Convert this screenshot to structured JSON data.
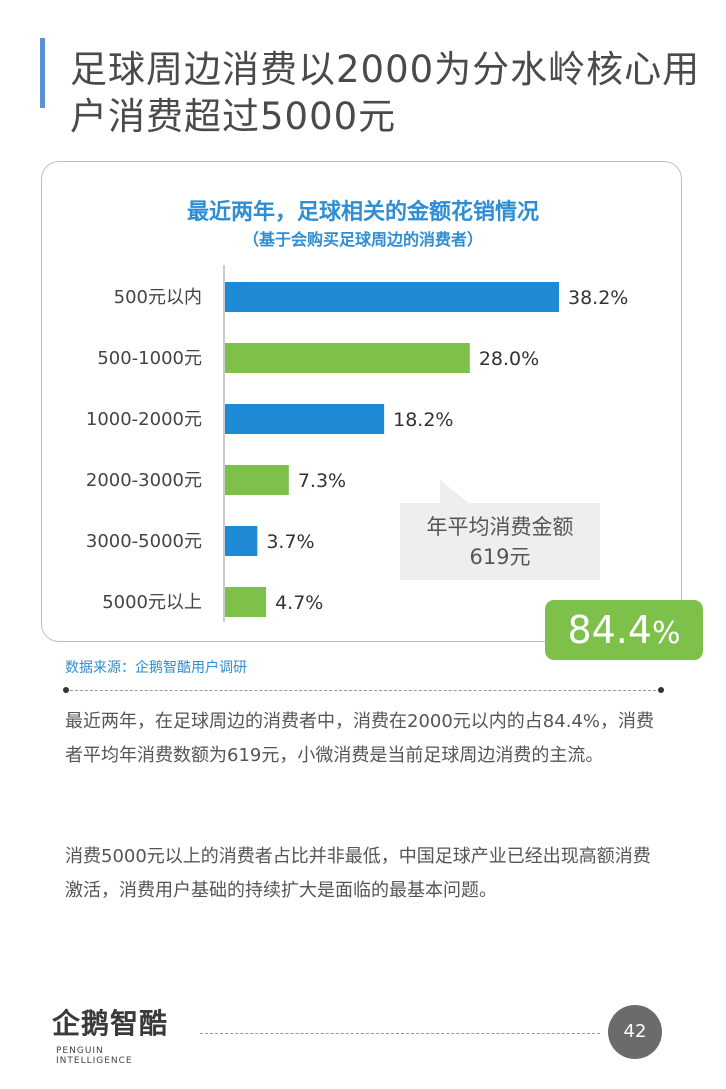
{
  "page": {
    "title": "足球周边消费以2000为分水岭核心用户消费超过5000元",
    "source": "数据来源：企鹅智酷用户调研",
    "paragraph1": "最近两年，在足球周边的消费者中，消费在2000元以内的占84.4%，消费者平均年消费数额为619元，小微消费是当前足球周边消费的主流。",
    "paragraph2": "消费5000元以上的消费者占比并非最低，中国足球产业已经出现高额消费激活，消费用户基础的持续扩大是面临的最基本问题。",
    "logo_text": "企鹅智酷",
    "logo_sub": "PENGUIN INTELLIGENCE",
    "page_number": "42"
  },
  "callout": {
    "line1": "年平均消费金额",
    "line2": "619元"
  },
  "highlight": {
    "value": "84.4",
    "unit": "%"
  },
  "colors": {
    "blue": "#1e8ad6",
    "green": "#7dc14a",
    "accent_title": "#2f8ed3"
  },
  "chart_data": {
    "type": "bar",
    "orientation": "horizontal",
    "title": "最近两年，足球相关的金额花销情况",
    "subtitle": "（基于会购买足球周边的消费者）",
    "categories": [
      "500元以内",
      "500-1000元",
      "1000-2000元",
      "2000-3000元",
      "3000-5000元",
      "5000元以上"
    ],
    "values": [
      38.2,
      28.0,
      18.2,
      7.3,
      3.7,
      4.7
    ],
    "value_labels": [
      "38.2%",
      "28.0%",
      "18.2%",
      "7.3%",
      "3.7%",
      "4.7%"
    ],
    "bar_colors": [
      "#1e8ad6",
      "#7dc14a",
      "#1e8ad6",
      "#7dc14a",
      "#1e8ad6",
      "#7dc14a"
    ],
    "xlim": [
      0,
      38.2
    ],
    "grid": false
  }
}
